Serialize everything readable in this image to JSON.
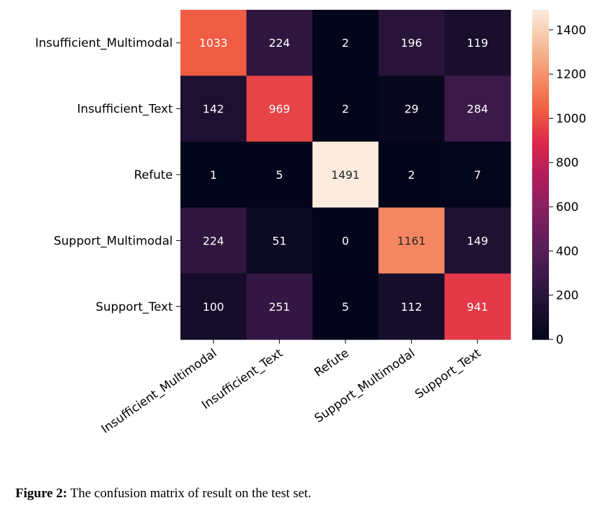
{
  "chart_data": {
    "type": "heatmap",
    "rows": [
      "Insufficient_Multimodal",
      "Insufficient_Text",
      "Refute",
      "Support_Multimodal",
      "Support_Text"
    ],
    "columns": [
      "Insufficient_Multimodal",
      "Insufficient_Text",
      "Refute",
      "Support_Multimodal",
      "Support_Text"
    ],
    "values": [
      [
        1033,
        224,
        2,
        196,
        119
      ],
      [
        142,
        969,
        2,
        29,
        284
      ],
      [
        1,
        5,
        1491,
        2,
        7
      ],
      [
        224,
        51,
        0,
        1161,
        149
      ],
      [
        100,
        251,
        5,
        112,
        941
      ]
    ],
    "colormap": "rocket",
    "colorbar": {
      "range": [
        0,
        1491
      ],
      "ticks": [
        0,
        200,
        400,
        600,
        800,
        1000,
        1200,
        1400
      ]
    }
  },
  "caption": {
    "label": "Figure 2:",
    "text": "The confusion matrix of result on the test set."
  }
}
